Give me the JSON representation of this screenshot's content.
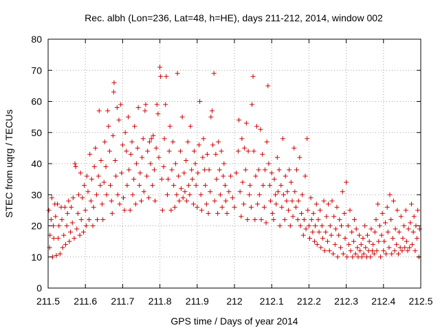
{
  "chart_data": {
    "type": "scatter",
    "title": "Rec. albh (Lon=236, Lat=48, h=HE), days 211-212, 2014, window 002",
    "xlabel": "GPS time / Days of year 2014",
    "ylabel": "STEC from uqrg / TECUs",
    "xlim": [
      211.5,
      212.5
    ],
    "ylim": [
      0,
      80
    ],
    "x_ticks": [
      "211.5",
      "211.6",
      "211.7",
      "211.8",
      "211.9",
      "212",
      "212.1",
      "212.2",
      "212.3",
      "212.4",
      "212.5"
    ],
    "y_ticks": [
      "0",
      "10",
      "20",
      "30",
      "40",
      "50",
      "60",
      "70",
      "80"
    ],
    "grid": true,
    "marker": "+",
    "color": "#cc0000",
    "points": [
      [
        211.502,
        25
      ],
      [
        211.504,
        13
      ],
      [
        211.505,
        17
      ],
      [
        211.508,
        22
      ],
      [
        211.51,
        29
      ],
      [
        211.512,
        10
      ],
      [
        211.514,
        20
      ],
      [
        211.515,
        16
      ],
      [
        211.518,
        27
      ],
      [
        211.52,
        23
      ],
      [
        211.522,
        10.5
      ],
      [
        211.525,
        27
      ],
      [
        211.527,
        16
      ],
      [
        211.529,
        20
      ],
      [
        211.532,
        11
      ],
      [
        211.535,
        26
      ],
      [
        211.537,
        22
      ],
      [
        211.539,
        13
      ],
      [
        211.542,
        17
      ],
      [
        211.545,
        26
      ],
      [
        211.547,
        14
      ],
      [
        211.55,
        20
      ],
      [
        211.552,
        24
      ],
      [
        211.555,
        28
      ],
      [
        211.557,
        15
      ],
      [
        211.56,
        18
      ],
      [
        211.562,
        26
      ],
      [
        211.565,
        21
      ],
      [
        211.567,
        29
      ],
      [
        211.57,
        16
      ],
      [
        211.572,
        40
      ],
      [
        211.574,
        39
      ],
      [
        211.577,
        19
      ],
      [
        211.58,
        24
      ],
      [
        211.582,
        30
      ],
      [
        211.585,
        17
      ],
      [
        211.587,
        37
      ],
      [
        211.589,
        22
      ],
      [
        211.592,
        29
      ],
      [
        211.595,
        18
      ],
      [
        211.597,
        33
      ],
      [
        211.6,
        25
      ],
      [
        211.602,
        20
      ],
      [
        211.604,
        36
      ],
      [
        211.607,
        31
      ],
      [
        211.61,
        22
      ],
      [
        211.612,
        43
      ],
      [
        211.615,
        28
      ],
      [
        211.617,
        35
      ],
      [
        211.62,
        20
      ],
      [
        211.622,
        26
      ],
      [
        211.624,
        39
      ],
      [
        211.627,
        45
      ],
      [
        211.63,
        30
      ],
      [
        211.632,
        22
      ],
      [
        211.635,
        36
      ],
      [
        211.637,
        57
      ],
      [
        211.64,
        33
      ],
      [
        211.642,
        41
      ],
      [
        211.645,
        27
      ],
      [
        211.647,
        22
      ],
      [
        211.65,
        34
      ],
      [
        211.652,
        47
      ],
      [
        211.655,
        39
      ],
      [
        211.657,
        30
      ],
      [
        211.66,
        57
      ],
      [
        211.662,
        52
      ],
      [
        211.665,
        44
      ],
      [
        211.667,
        33
      ],
      [
        211.67,
        28
      ],
      [
        211.672,
        24
      ],
      [
        211.674,
        49
      ],
      [
        211.676,
        63
      ],
      [
        211.677,
        66
      ],
      [
        211.68,
        41
      ],
      [
        211.682,
        36
      ],
      [
        211.685,
        58
      ],
      [
        211.687,
        30
      ],
      [
        211.69,
        54
      ],
      [
        211.692,
        27
      ],
      [
        211.695,
        59
      ],
      [
        211.697,
        37
      ],
      [
        211.7,
        46
      ],
      [
        211.702,
        29
      ],
      [
        211.705,
        25
      ],
      [
        211.707,
        50
      ],
      [
        211.71,
        44
      ],
      [
        211.712,
        33
      ],
      [
        211.715,
        55
      ],
      [
        211.717,
        38
      ],
      [
        211.72,
        25
      ],
      [
        211.722,
        43
      ],
      [
        211.725,
        47
      ],
      [
        211.727,
        30
      ],
      [
        211.73,
        35
      ],
      [
        211.732,
        52
      ],
      [
        211.735,
        27
      ],
      [
        211.737,
        40
      ],
      [
        211.74,
        45
      ],
      [
        211.742,
        58
      ],
      [
        211.745,
        33
      ],
      [
        211.747,
        37
      ],
      [
        211.75,
        28
      ],
      [
        211.752,
        42
      ],
      [
        211.755,
        48
      ],
      [
        211.757,
        31
      ],
      [
        211.76,
        57
      ],
      [
        211.762,
        59
      ],
      [
        211.765,
        36
      ],
      [
        211.767,
        44
      ],
      [
        211.77,
        29
      ],
      [
        211.772,
        47
      ],
      [
        211.775,
        40
      ],
      [
        211.777,
        48
      ],
      [
        211.78,
        33
      ],
      [
        211.782,
        49
      ],
      [
        211.785,
        38
      ],
      [
        211.787,
        28
      ],
      [
        211.79,
        45
      ],
      [
        211.792,
        59
      ],
      [
        211.795,
        56
      ],
      [
        211.797,
        42
      ],
      [
        211.8,
        71
      ],
      [
        211.802,
        68
      ],
      [
        211.805,
        35
      ],
      [
        211.807,
        25
      ],
      [
        211.81,
        39
      ],
      [
        211.812,
        48
      ],
      [
        211.815,
        59
      ],
      [
        211.817,
        68
      ],
      [
        211.82,
        30
      ],
      [
        211.822,
        35
      ],
      [
        211.825,
        44
      ],
      [
        211.827,
        52
      ],
      [
        211.83,
        25
      ],
      [
        211.832,
        38
      ],
      [
        211.835,
        47
      ],
      [
        211.837,
        33
      ],
      [
        211.84,
        26
      ],
      [
        211.842,
        40
      ],
      [
        211.845,
        30
      ],
      [
        211.847,
        69
      ],
      [
        211.85,
        36
      ],
      [
        211.852,
        28
      ],
      [
        211.855,
        44
      ],
      [
        211.857,
        32
      ],
      [
        211.86,
        55
      ],
      [
        211.862,
        29
      ],
      [
        211.865,
        37
      ],
      [
        211.867,
        31
      ],
      [
        211.87,
        41
      ],
      [
        211.872,
        28
      ],
      [
        211.875,
        47
      ],
      [
        211.877,
        33
      ],
      [
        211.88,
        30
      ],
      [
        211.882,
        52
      ],
      [
        211.885,
        38
      ],
      [
        211.887,
        35
      ],
      [
        211.89,
        27
      ],
      [
        211.892,
        44
      ],
      [
        211.895,
        40
      ],
      [
        211.897,
        33
      ],
      [
        211.9,
        26
      ],
      [
        211.902,
        37
      ],
      [
        211.905,
        46
      ],
      [
        211.907,
        60
      ],
      [
        211.91,
        30
      ],
      [
        211.912,
        25
      ],
      [
        211.915,
        42
      ],
      [
        211.917,
        48
      ],
      [
        211.92,
        38
      ],
      [
        211.922,
        33
      ],
      [
        211.925,
        27
      ],
      [
        211.927,
        43
      ],
      [
        211.93,
        24
      ],
      [
        211.932,
        38
      ],
      [
        211.935,
        31
      ],
      [
        211.937,
        55
      ],
      [
        211.94,
        57
      ],
      [
        211.942,
        46
      ],
      [
        211.945,
        69
      ],
      [
        211.947,
        28
      ],
      [
        211.95,
        43
      ],
      [
        211.952,
        35
      ],
      [
        211.955,
        24
      ],
      [
        211.957,
        47
      ],
      [
        211.96,
        38
      ],
      [
        211.962,
        30
      ],
      [
        211.965,
        44
      ],
      [
        211.967,
        26
      ],
      [
        211.97,
        36
      ],
      [
        211.972,
        40
      ],
      [
        211.975,
        33
      ],
      [
        211.977,
        28
      ],
      [
        211.98,
        24
      ],
      [
        211.985,
        31
      ],
      [
        211.99,
        36
      ],
      [
        211.995,
        29
      ],
      [
        212.0,
        26
      ],
      [
        212.005,
        37
      ],
      [
        212.01,
        44
      ],
      [
        212.012,
        54
      ],
      [
        212.015,
        31
      ],
      [
        212.018,
        23
      ],
      [
        212.02,
        48
      ],
      [
        212.022,
        34
      ],
      [
        212.025,
        27
      ],
      [
        212.027,
        45
      ],
      [
        212.03,
        38
      ],
      [
        212.032,
        53
      ],
      [
        212.035,
        22
      ],
      [
        212.037,
        44
      ],
      [
        212.04,
        30
      ],
      [
        212.042,
        33
      ],
      [
        212.045,
        26
      ],
      [
        212.047,
        59
      ],
      [
        212.05,
        68
      ],
      [
        212.052,
        44
      ],
      [
        212.055,
        22
      ],
      [
        212.057,
        36
      ],
      [
        212.06,
        52
      ],
      [
        212.062,
        27
      ],
      [
        212.065,
        38
      ],
      [
        212.067,
        30
      ],
      [
        212.07,
        51
      ],
      [
        212.072,
        22
      ],
      [
        212.075,
        43
      ],
      [
        212.077,
        33
      ],
      [
        212.08,
        26
      ],
      [
        212.082,
        38
      ],
      [
        212.085,
        21
      ],
      [
        212.087,
        47
      ],
      [
        212.09,
        65
      ],
      [
        212.092,
        40
      ],
      [
        212.095,
        33
      ],
      [
        212.097,
        28
      ],
      [
        212.1,
        37
      ],
      [
        212.102,
        24
      ],
      [
        212.105,
        22
      ],
      [
        212.107,
        35
      ],
      [
        212.11,
        30
      ],
      [
        212.112,
        27
      ],
      [
        212.115,
        42
      ],
      [
        212.117,
        31
      ],
      [
        212.12,
        38
      ],
      [
        212.122,
        20
      ],
      [
        212.125,
        33
      ],
      [
        212.127,
        26
      ],
      [
        212.13,
        48
      ],
      [
        212.132,
        30
      ],
      [
        212.135,
        22
      ],
      [
        212.137,
        36
      ],
      [
        212.14,
        28
      ],
      [
        212.142,
        31
      ],
      [
        212.145,
        25
      ],
      [
        212.147,
        38
      ],
      [
        212.15,
        20
      ],
      [
        212.152,
        34
      ],
      [
        212.155,
        28
      ],
      [
        212.157,
        23
      ],
      [
        212.16,
        45
      ],
      [
        212.162,
        31
      ],
      [
        212.165,
        26
      ],
      [
        212.167,
        38
      ],
      [
        212.17,
        22
      ],
      [
        212.172,
        28
      ],
      [
        212.175,
        42
      ],
      [
        212.177,
        20
      ],
      [
        212.18,
        24
      ],
      [
        212.182,
        30
      ],
      [
        212.185,
        17
      ],
      [
        212.187,
        22
      ],
      [
        212.19,
        36
      ],
      [
        212.192,
        19
      ],
      [
        212.195,
        48
      ],
      [
        212.197,
        25
      ],
      [
        212.2,
        20
      ],
      [
        212.202,
        16
      ],
      [
        212.205,
        29
      ],
      [
        212.207,
        22
      ],
      [
        212.21,
        18
      ],
      [
        212.212,
        24
      ],
      [
        212.215,
        15
      ],
      [
        212.217,
        20
      ],
      [
        212.22,
        27
      ],
      [
        212.222,
        14
      ],
      [
        212.225,
        22
      ],
      [
        212.227,
        18
      ],
      [
        212.23,
        25
      ],
      [
        212.232,
        13
      ],
      [
        212.235,
        20
      ],
      [
        212.237,
        16
      ],
      [
        212.24,
        28
      ],
      [
        212.242,
        12
      ],
      [
        212.245,
        18
      ],
      [
        212.247,
        23
      ],
      [
        212.25,
        15
      ],
      [
        212.252,
        27
      ],
      [
        212.255,
        12
      ],
      [
        212.257,
        20
      ],
      [
        212.26,
        17
      ],
      [
        212.262,
        28
      ],
      [
        212.265,
        11
      ],
      [
        212.267,
        23
      ],
      [
        212.27,
        14
      ],
      [
        212.272,
        19
      ],
      [
        212.275,
        26
      ],
      [
        212.277,
        10
      ],
      [
        212.28,
        17
      ],
      [
        212.282,
        22
      ],
      [
        212.285,
        13
      ],
      [
        212.287,
        20
      ],
      [
        212.29,
        31
      ],
      [
        212.292,
        11
      ],
      [
        212.295,
        24
      ],
      [
        212.297,
        16
      ],
      [
        212.3,
        34
      ],
      [
        212.302,
        10
      ],
      [
        212.305,
        20
      ],
      [
        212.307,
        14
      ],
      [
        212.31,
        25
      ],
      [
        212.312,
        12
      ],
      [
        212.315,
        18
      ],
      [
        212.317,
        10
      ],
      [
        212.32,
        15
      ],
      [
        212.322,
        22
      ],
      [
        212.325,
        11
      ],
      [
        212.327,
        19
      ],
      [
        212.33,
        13
      ],
      [
        212.332,
        10
      ],
      [
        212.335,
        17
      ],
      [
        212.337,
        12
      ],
      [
        212.34,
        14
      ],
      [
        212.342,
        10
      ],
      [
        212.345,
        16
      ],
      [
        212.347,
        11
      ],
      [
        212.35,
        20
      ],
      [
        212.352,
        13
      ],
      [
        212.355,
        10
      ],
      [
        212.357,
        17
      ],
      [
        212.36,
        12
      ],
      [
        212.362,
        15
      ],
      [
        212.365,
        10
      ],
      [
        212.367,
        19
      ],
      [
        212.37,
        12
      ],
      [
        212.372,
        14
      ],
      [
        212.375,
        11
      ],
      [
        212.377,
        18
      ],
      [
        212.38,
        22
      ],
      [
        212.382,
        12
      ],
      [
        212.385,
        27
      ],
      [
        212.387,
        15
      ],
      [
        212.39,
        20
      ],
      [
        212.392,
        10
      ],
      [
        212.395,
        17
      ],
      [
        212.397,
        24
      ],
      [
        212.4,
        12
      ],
      [
        212.402,
        15
      ],
      [
        212.405,
        21
      ],
      [
        212.407,
        11
      ],
      [
        212.41,
        26
      ],
      [
        212.412,
        18
      ],
      [
        212.415,
        13
      ],
      [
        212.417,
        30
      ],
      [
        212.42,
        22
      ],
      [
        212.422,
        11
      ],
      [
        212.425,
        16
      ],
      [
        212.427,
        28
      ],
      [
        212.43,
        12
      ],
      [
        212.432,
        19
      ],
      [
        212.435,
        14
      ],
      [
        212.437,
        25
      ],
      [
        212.44,
        11
      ],
      [
        212.442,
        18
      ],
      [
        212.445,
        13
      ],
      [
        212.447,
        23
      ],
      [
        212.45,
        12
      ],
      [
        212.452,
        16
      ],
      [
        212.455,
        20
      ],
      [
        212.457,
        13
      ],
      [
        212.46,
        25
      ],
      [
        212.462,
        15
      ],
      [
        212.465,
        12
      ],
      [
        212.467,
        19
      ],
      [
        212.47,
        13
      ],
      [
        212.472,
        21
      ],
      [
        212.475,
        27
      ],
      [
        212.477,
        14
      ],
      [
        212.48,
        18
      ],
      [
        212.482,
        23
      ],
      [
        212.485,
        12
      ],
      [
        212.487,
        20
      ],
      [
        212.49,
        16
      ],
      [
        212.492,
        25
      ],
      [
        212.495,
        10
      ],
      [
        212.497,
        19
      ]
    ]
  }
}
